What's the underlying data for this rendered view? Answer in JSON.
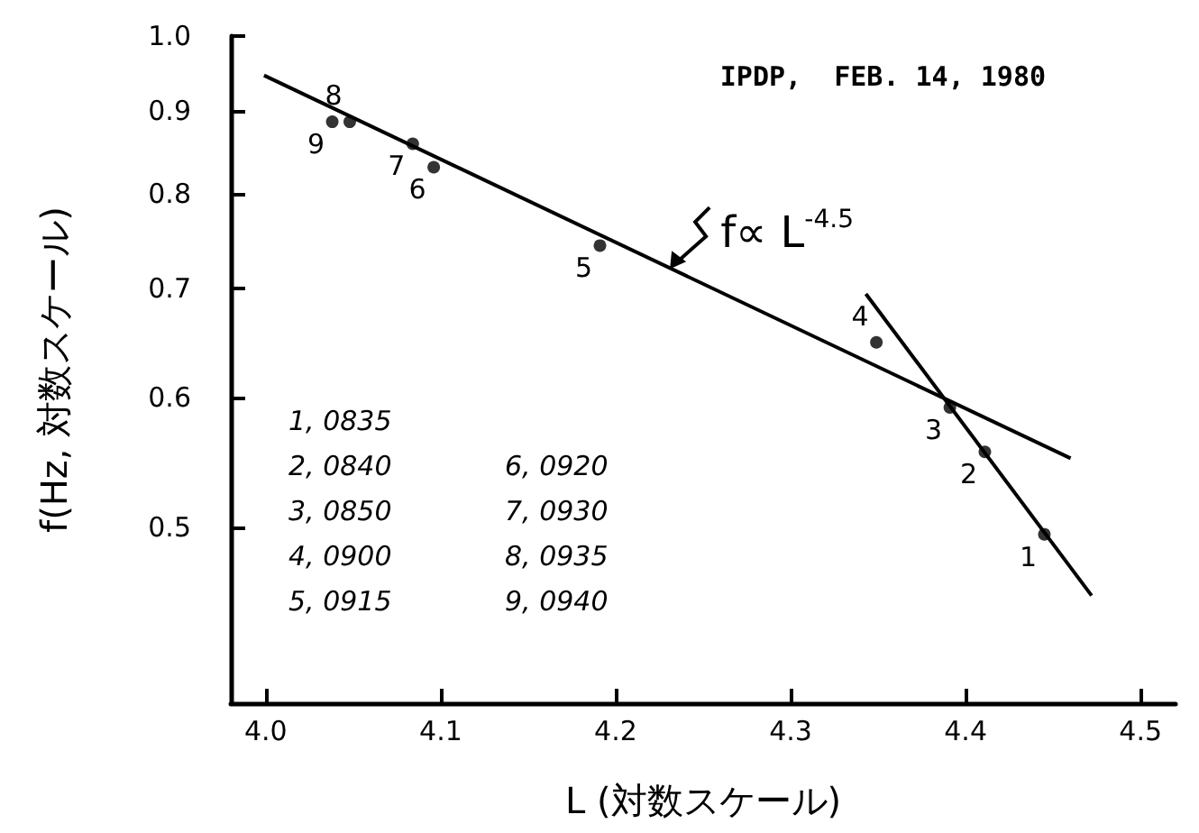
{
  "chart_data": {
    "type": "scatter",
    "title": "IPDP,  FEB. 14, 1980",
    "xlabel": "L (対数スケール)",
    "ylabel": "f(Hz, 対数スケール)",
    "xlim": [
      3.98,
      4.52
    ],
    "xticks": [
      {
        "value": 4,
        "label": "4.0"
      },
      4.1,
      4.2,
      4.3,
      4.4,
      4.5
    ],
    "ylim": [
      0.39,
      1.0
    ],
    "yticks": [
      0.5,
      0.6,
      0.7,
      0.8,
      0.9,
      {
        "value": 1,
        "label": "1.0"
      }
    ],
    "log": "y",
    "grid": false,
    "marker": "circle",
    "series": [
      {
        "color": "#000000",
        "x": [
          4.445,
          4.411,
          4.391,
          4.349,
          4.191,
          4.096,
          4.084,
          4.048,
          4.038
        ],
        "values": [
          0.495,
          0.556,
          0.592,
          0.649,
          0.744,
          0.831,
          0.859,
          0.886,
          0.886
        ]
      },
      {
        "type": "line",
        "color": "#000000",
        "marker": "none",
        "line_style": "solid",
        "x": [
          3.999,
          4.46
        ],
        "values": [
          0.946,
          0.551
        ]
      },
      {
        "type": "line",
        "color": "#000000",
        "marker": "none",
        "line_style": "solid",
        "x": [
          4.343,
          4.472
        ],
        "values": [
          0.695,
          0.454
        ]
      }
    ],
    "annotations": [
      {
        "text": "f∝ L$^{-4.5}$",
        "x": 4.231,
        "y": 0.72
      },
      {
        "text": "1",
        "x": 4.445,
        "y": 0.495
      },
      {
        "text": "2",
        "x": 4.411,
        "y": 0.556
      },
      {
        "text": "3",
        "x": 4.391,
        "y": 0.592
      },
      {
        "text": "4",
        "x": 4.349,
        "y": 0.649
      },
      {
        "text": "5",
        "x": 4.191,
        "y": 0.744
      },
      {
        "text": "6",
        "x": 4.096,
        "y": 0.831
      },
      {
        "text": "7",
        "x": 4.084,
        "y": 0.859
      },
      {
        "text": "8",
        "x": 4.048,
        "y": 0.886
      },
      {
        "text": "9",
        "x": 4.038,
        "y": 0.886
      },
      "1, 0835",
      "2, 0840",
      "3, 0850",
      "4, 0900",
      "5, 0915",
      "6, 0920",
      "7, 0930",
      "8, 0935",
      "9, 0940"
    ]
  }
}
